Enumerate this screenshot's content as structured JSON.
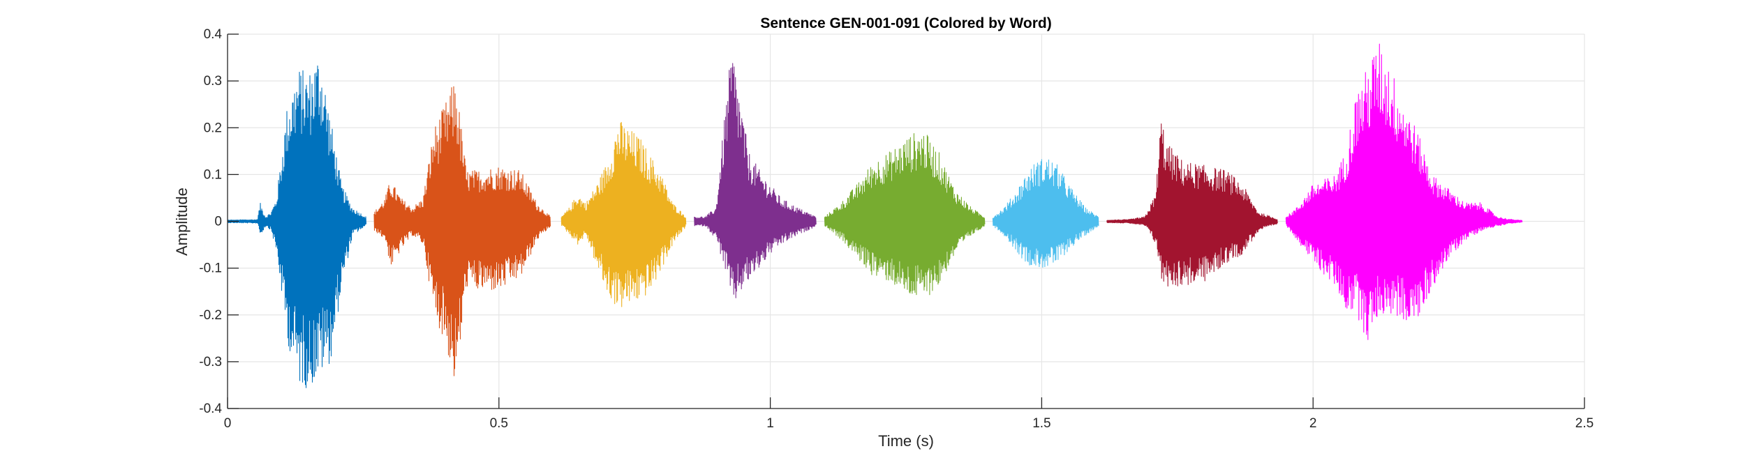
{
  "chart_data": {
    "type": "line",
    "title": "Sentence GEN-001-091 (Colored by Word)",
    "xlabel": "Time (s)",
    "ylabel": "Amplitude",
    "xlim": [
      0,
      2.5
    ],
    "ylim": [
      -0.4,
      0.4
    ],
    "xticks": [
      0,
      0.5,
      1,
      1.5,
      2,
      2.5
    ],
    "xtick_labels": [
      "0",
      "0.5",
      "1",
      "1.5",
      "2",
      "2.5"
    ],
    "yticks": [
      -0.4,
      -0.3,
      -0.2,
      -0.1,
      0,
      0.1,
      0.2,
      0.3,
      0.4
    ],
    "ytick_labels": [
      "-0.4",
      "-0.3",
      "-0.2",
      "-0.1",
      "0",
      "0.1",
      "0.2",
      "0.3",
      "0.4"
    ],
    "grid": true,
    "series": [
      {
        "color": "#0072BD",
        "t_start": 0.0,
        "t_end": 0.255,
        "envelope_t": [
          0.0,
          0.055,
          0.06,
          0.07,
          0.08,
          0.09,
          0.11,
          0.13,
          0.15,
          0.17,
          0.19,
          0.21,
          0.23,
          0.255
        ],
        "envelope_max": [
          0.003,
          0.004,
          0.04,
          0.01,
          0.02,
          0.05,
          0.25,
          0.33,
          0.32,
          0.37,
          0.22,
          0.08,
          0.03,
          0.01
        ],
        "envelope_min": [
          -0.003,
          -0.004,
          -0.03,
          -0.01,
          -0.02,
          -0.07,
          -0.26,
          -0.35,
          -0.36,
          -0.33,
          -0.3,
          -0.14,
          -0.03,
          -0.01
        ]
      },
      {
        "color": "#D95319",
        "t_start": 0.27,
        "t_end": 0.595,
        "envelope_t": [
          0.27,
          0.29,
          0.3,
          0.32,
          0.34,
          0.36,
          0.38,
          0.4,
          0.42,
          0.44,
          0.46,
          0.5,
          0.54,
          0.57,
          0.595
        ],
        "envelope_max": [
          0.02,
          0.05,
          0.09,
          0.05,
          0.03,
          0.05,
          0.2,
          0.25,
          0.31,
          0.11,
          0.11,
          0.12,
          0.11,
          0.04,
          0.01
        ],
        "envelope_min": [
          -0.02,
          -0.04,
          -0.1,
          -0.06,
          -0.03,
          -0.05,
          -0.2,
          -0.26,
          -0.36,
          -0.14,
          -0.15,
          -0.15,
          -0.12,
          -0.04,
          -0.01
        ]
      },
      {
        "color": "#EDB120",
        "t_start": 0.615,
        "t_end": 0.845,
        "envelope_t": [
          0.615,
          0.63,
          0.645,
          0.66,
          0.68,
          0.7,
          0.72,
          0.74,
          0.76,
          0.78,
          0.8,
          0.82,
          0.845
        ],
        "envelope_max": [
          0.01,
          0.03,
          0.06,
          0.04,
          0.08,
          0.13,
          0.22,
          0.2,
          0.18,
          0.14,
          0.1,
          0.04,
          0.01
        ],
        "envelope_min": [
          -0.01,
          -0.03,
          -0.05,
          -0.03,
          -0.1,
          -0.16,
          -0.19,
          -0.18,
          -0.17,
          -0.15,
          -0.1,
          -0.05,
          -0.01
        ]
      },
      {
        "color": "#7E2F8E",
        "t_start": 0.86,
        "t_end": 1.085,
        "envelope_t": [
          0.86,
          0.88,
          0.9,
          0.92,
          0.93,
          0.94,
          0.96,
          0.98,
          1.0,
          1.02,
          1.05,
          1.085
        ],
        "envelope_max": [
          0.01,
          0.01,
          0.03,
          0.28,
          0.38,
          0.3,
          0.15,
          0.11,
          0.08,
          0.05,
          0.03,
          0.01
        ],
        "envelope_min": [
          -0.01,
          -0.01,
          -0.04,
          -0.12,
          -0.19,
          -0.16,
          -0.13,
          -0.1,
          -0.07,
          -0.05,
          -0.03,
          -0.01
        ]
      },
      {
        "color": "#77AC30",
        "t_start": 1.1,
        "t_end": 1.395,
        "envelope_t": [
          1.1,
          1.13,
          1.16,
          1.19,
          1.22,
          1.25,
          1.28,
          1.31,
          1.34,
          1.37,
          1.395
        ],
        "envelope_max": [
          0.01,
          0.04,
          0.08,
          0.13,
          0.15,
          0.18,
          0.2,
          0.15,
          0.07,
          0.03,
          0.01
        ],
        "envelope_min": [
          -0.01,
          -0.04,
          -0.08,
          -0.12,
          -0.13,
          -0.16,
          -0.17,
          -0.14,
          -0.07,
          -0.03,
          -0.01
        ]
      },
      {
        "color": "#4DBEEE",
        "t_start": 1.41,
        "t_end": 1.605,
        "envelope_t": [
          1.41,
          1.43,
          1.45,
          1.47,
          1.49,
          1.51,
          1.53,
          1.55,
          1.58,
          1.605
        ],
        "envelope_max": [
          0.01,
          0.03,
          0.06,
          0.1,
          0.13,
          0.14,
          0.12,
          0.08,
          0.03,
          0.01
        ],
        "envelope_min": [
          -0.01,
          -0.03,
          -0.06,
          -0.09,
          -0.1,
          -0.1,
          -0.09,
          -0.06,
          -0.03,
          -0.01
        ]
      },
      {
        "color": "#A2142F",
        "t_start": 1.62,
        "t_end": 1.935,
        "envelope_t": [
          1.62,
          1.66,
          1.69,
          1.71,
          1.72,
          1.73,
          1.76,
          1.8,
          1.84,
          1.87,
          1.9,
          1.935
        ],
        "envelope_max": [
          0.003,
          0.004,
          0.01,
          0.06,
          0.23,
          0.17,
          0.13,
          0.12,
          0.11,
          0.08,
          0.02,
          0.005
        ],
        "envelope_min": [
          -0.003,
          -0.004,
          -0.01,
          -0.05,
          -0.13,
          -0.14,
          -0.14,
          -0.13,
          -0.09,
          -0.07,
          -0.02,
          -0.005
        ]
      },
      {
        "color": "#FF00FF",
        "t_start": 1.95,
        "t_end": 2.385,
        "envelope_t": [
          1.95,
          1.97,
          2.0,
          2.04,
          2.06,
          2.08,
          2.1,
          2.12,
          2.14,
          2.16,
          2.19,
          2.22,
          2.25,
          2.28,
          2.31,
          2.34,
          2.36,
          2.385
        ],
        "envelope_max": [
          0.01,
          0.03,
          0.08,
          0.1,
          0.15,
          0.28,
          0.33,
          0.39,
          0.34,
          0.28,
          0.2,
          0.1,
          0.07,
          0.04,
          0.04,
          0.01,
          0.005,
          0.002
        ],
        "envelope_min": [
          -0.01,
          -0.04,
          -0.09,
          -0.14,
          -0.19,
          -0.2,
          -0.26,
          -0.2,
          -0.2,
          -0.21,
          -0.22,
          -0.14,
          -0.08,
          -0.04,
          -0.02,
          -0.01,
          -0.005,
          -0.002
        ]
      }
    ]
  }
}
